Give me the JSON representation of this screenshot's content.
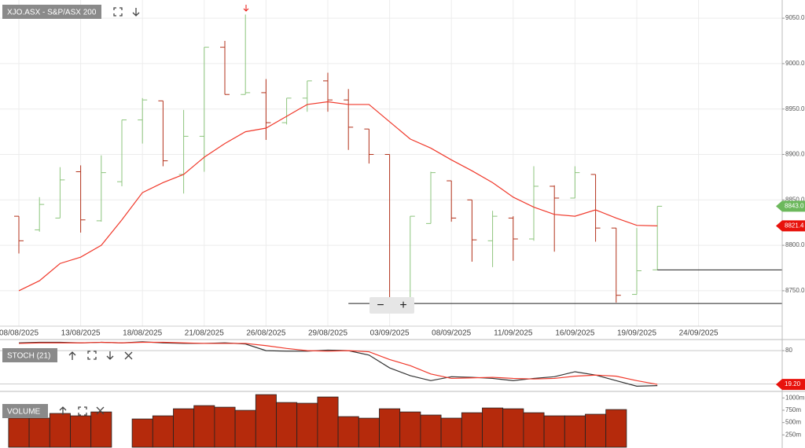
{
  "chart_data": [
    {
      "type": "ohlc",
      "title": "XJO.ASX - S&P/ASX 200",
      "categories": [
        "08/08/2025",
        null,
        null,
        "13/08/2025",
        null,
        null,
        "18/08/2025",
        null,
        null,
        "21/08/2025",
        null,
        null,
        "26/08/2025",
        null,
        null,
        "29/08/2025",
        null,
        null,
        "03/09/2025",
        null,
        null,
        "08/09/2025",
        null,
        null,
        "11/09/2025",
        null,
        null,
        "16/09/2025",
        null,
        null,
        "19/09/2025",
        null,
        null,
        "24/09/2025"
      ],
      "open": [
        8832,
        8817,
        8830,
        8881,
        8827,
        8870,
        8938,
        8959,
        8878,
        8920,
        9018,
        8966,
        8968,
        8935,
        8962,
        8981,
        8960,
        8928,
        8900,
        8740,
        8824,
        8871,
        8850,
        8805,
        8830,
        8807,
        8865,
        8852,
        8878,
        8819,
        8746,
        8773,
        null,
        null
      ],
      "high": [
        8832,
        8853,
        8886,
        8888,
        8899,
        8938,
        8962,
        8959,
        8949,
        9018,
        9025,
        9054,
        8983,
        8962,
        8981,
        8990,
        8972,
        8928,
        8900,
        8832,
        8881,
        8871,
        8850,
        8838,
        8832,
        8887,
        8866,
        8887,
        8878,
        8819,
        8819,
        8843,
        null,
        null
      ],
      "low": [
        8791,
        8815,
        8830,
        8814,
        8826,
        8865,
        8912,
        8887,
        8857,
        8881,
        8966,
        8966,
        8916,
        8933,
        8947,
        8947,
        8905,
        8890,
        8729,
        8737,
        8824,
        8826,
        8782,
        8776,
        8783,
        8805,
        8793,
        8852,
        8804,
        8737,
        8746,
        8773,
        null,
        null
      ],
      "close": [
        8805,
        8845,
        8872,
        8828,
        8880,
        8938,
        8960,
        8893,
        8920,
        9018,
        8966,
        8968,
        8935,
        8962,
        8981,
        8960,
        8930,
        8900,
        8738,
        8832,
        8880,
        8830,
        8806,
        8832,
        8807,
        8865,
        8852,
        8880,
        8819,
        8745,
        8772,
        8843,
        null,
        null
      ],
      "up_color": "#8cc47c",
      "down_color": "#b3321b",
      "overlay": {
        "color": "#f0392b",
        "values": [
          8750,
          8761,
          8780,
          8787,
          8800,
          8828,
          8858,
          8869,
          8878,
          8897,
          8912,
          8925,
          8929,
          8942,
          8955,
          8958,
          8955,
          8955,
          8936,
          8917,
          8907,
          8894,
          8882,
          8869,
          8853,
          8842,
          8834,
          8832,
          8839,
          8830,
          8822,
          8821.4,
          null,
          null
        ]
      },
      "levels": [
        {
          "value": 8773,
          "start": 31
        },
        {
          "value": 8736,
          "start": 16
        }
      ],
      "ylim": [
        8711,
        9070
      ],
      "yticks": [
        {
          "value": 8750,
          "label": "8750.0"
        },
        {
          "value": 8800,
          "label": "8800.0"
        },
        {
          "value": 8850,
          "label": "8850.0"
        },
        {
          "value": 8900,
          "label": "8900.0"
        },
        {
          "value": 8950,
          "label": "8950.0"
        },
        {
          "value": 9000,
          "label": "9000.0"
        },
        {
          "value": 9050,
          "label": "9050.0"
        }
      ],
      "price_tags": [
        {
          "value": 8843,
          "label": "8843.0",
          "color": "#6cb85c"
        },
        {
          "value": 8821.4,
          "color": "#e8120c"
        }
      ],
      "grid": true
    },
    {
      "type": "line",
      "title": "STOCH (21)",
      "series": [
        {
          "color": "#333333",
          "values": [
            94,
            95,
            95,
            94,
            95,
            94,
            96,
            94,
            93,
            93,
            94,
            92,
            80,
            79,
            79,
            81,
            80,
            72,
            49,
            35,
            26,
            33,
            32,
            30,
            26,
            30,
            33,
            42,
            36,
            26,
            16,
            17,
            null,
            null
          ]
        },
        {
          "color": "#f0392b",
          "values": [
            93,
            94,
            94,
            94,
            95,
            94,
            95,
            95,
            94,
            93,
            93,
            93,
            89,
            84,
            80,
            79,
            80,
            78,
            64,
            53,
            38,
            30,
            31,
            32,
            30,
            29,
            30,
            34,
            36,
            34,
            26,
            19.2,
            null,
            null
          ]
        }
      ],
      "ylim": [
        8,
        100
      ],
      "yticks": [
        80
      ],
      "levels": [
        80,
        20
      ],
      "price_tags": [
        {
          "value": 19.2,
          "label": "19.20",
          "color": "#e8120c"
        }
      ]
    },
    {
      "type": "bar",
      "title": "VOLUME",
      "color": "#b52a0c",
      "values": [
        590,
        590,
        685,
        637,
        716,
        null,
        573,
        637,
        780,
        844,
        812,
        748,
        1067,
        907,
        892,
        1019,
        621,
        589,
        780,
        716,
        653,
        590,
        700,
        796,
        780,
        700,
        637,
        637,
        669,
        764,
        null,
        null,
        null,
        null
      ],
      "ylim": [
        0,
        1100
      ],
      "yticks": [
        {
          "value": 250,
          "label": "250m"
        },
        {
          "value": 500,
          "label": "500m"
        },
        {
          "value": 750,
          "label": "750m"
        },
        {
          "value": 1000,
          "label": "1000m"
        }
      ]
    }
  ],
  "zoom": {
    "out": "−",
    "in": "+"
  }
}
